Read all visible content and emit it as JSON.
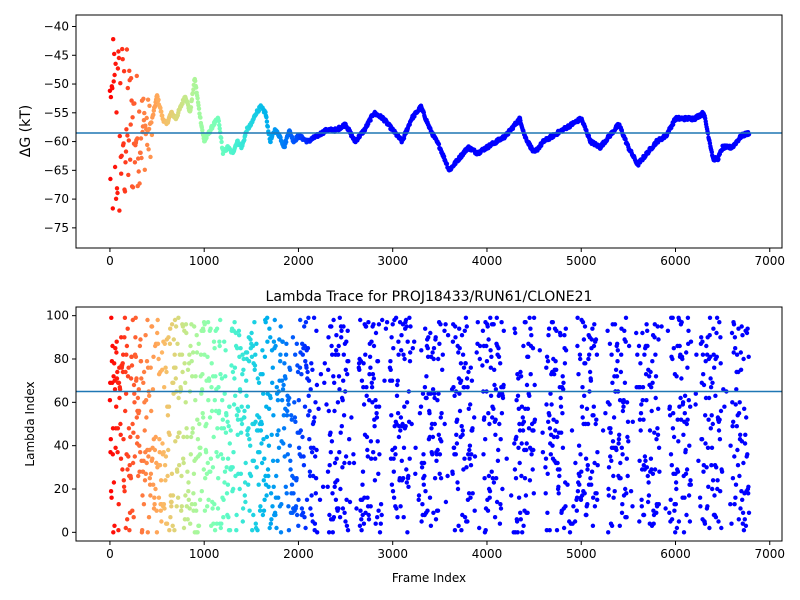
{
  "chart_data": [
    {
      "type": "scatter",
      "xlabel": "",
      "ylabel": "ΔG (kT)",
      "xlim": [
        -360,
        7130
      ],
      "ylim": [
        -78.5,
        -38
      ],
      "xticks": [
        0,
        1000,
        2000,
        3000,
        4000,
        5000,
        6000,
        7000
      ],
      "yticks": [
        -75,
        -70,
        -65,
        -60,
        -55,
        -50,
        -45,
        -40
      ],
      "hline": -58.5,
      "hline_color": "#1f77b4",
      "colormap": "rainbow (reversed: red at start, violet at end)",
      "series": [
        {
          "x": [
            0,
            20,
            40,
            60,
            80,
            100,
            130,
            160,
            200,
            250,
            300,
            350,
            400,
            450,
            500,
            560,
            600,
            650,
            700,
            750,
            800,
            850,
            900,
            950,
            1000,
            1100,
            1150,
            1200,
            1250,
            1300,
            1350,
            1400,
            1450,
            1500,
            1550,
            1600,
            1650,
            1700,
            1750,
            1800,
            1850,
            1900,
            1950,
            2000,
            2100,
            2200,
            2300,
            2400,
            2500,
            2600,
            2700,
            2800,
            2900,
            3000,
            3100,
            3200,
            3300,
            3400,
            3500,
            3600,
            3700,
            3800,
            3900,
            4000,
            4100,
            4200,
            4300,
            4350,
            4400,
            4500,
            4600,
            4700,
            4800,
            4900,
            5000,
            5100,
            5200,
            5300,
            5400,
            5500,
            5600,
            5700,
            5800,
            5900,
            6000,
            6100,
            6200,
            6300,
            6400,
            6450,
            6500,
            6600,
            6700,
            6780
          ],
          "y": [
            -60,
            -50,
            -70,
            -45,
            -55,
            -65,
            -72,
            -60,
            -57,
            -52,
            -55,
            -58,
            -53,
            -56,
            -52,
            -56,
            -57,
            -55,
            -56,
            -54,
            -52,
            -55,
            -49,
            -55,
            -60,
            -57,
            -56,
            -62,
            -61,
            -62,
            -60,
            -61,
            -58,
            -57,
            -55,
            -54,
            -55,
            -60,
            -58,
            -59,
            -61,
            -58,
            -60,
            -59,
            -60,
            -59,
            -58,
            -58,
            -57,
            -60,
            -58,
            -55,
            -56,
            -58,
            -60,
            -56,
            -54,
            -58,
            -61,
            -65,
            -63,
            -61,
            -62,
            -61,
            -60,
            -59,
            -57,
            -56,
            -59,
            -62,
            -60,
            -59,
            -58,
            -57,
            -56,
            -60,
            -61,
            -59,
            -57,
            -61,
            -64,
            -62,
            -60,
            -59,
            -56,
            -56,
            -56,
            -55,
            -63,
            -63,
            -61,
            -61,
            -59,
            -58.5
          ]
        }
      ]
    },
    {
      "type": "scatter",
      "title": "Lambda Trace for PROJ18433/RUN61/CLONE21",
      "xlabel": "Frame Index",
      "ylabel": "Lambda Index",
      "xlim": [
        -360,
        7130
      ],
      "ylim": [
        -4,
        104
      ],
      "xticks": [
        0,
        1000,
        2000,
        3000,
        4000,
        5000,
        6000,
        7000
      ],
      "yticks": [
        0,
        20,
        40,
        60,
        80,
        100
      ],
      "hline": 65,
      "hline_color": "#1f77b4",
      "colormap": "rainbow (reversed: red at start, violet at end)",
      "series": [
        {
          "x_range": [
            0,
            6780
          ],
          "y_range": [
            0,
            99
          ],
          "n_frames_approx": 6780
        }
      ]
    }
  ]
}
